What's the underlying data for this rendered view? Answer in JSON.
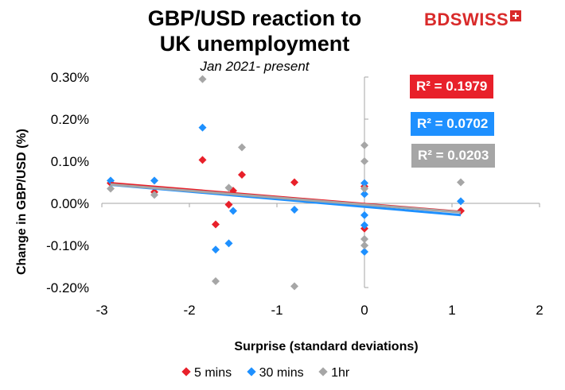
{
  "chart_data": {
    "type": "scatter",
    "title_line1": "GBP/USD reaction to",
    "title_line2": "UK unemployment",
    "subtitle": "Jan 2021- present",
    "xlabel": "Surprise (standard deviations)",
    "ylabel": "Change in GBP/USD  (%)",
    "xlim": [
      -3,
      2
    ],
    "ylim": [
      -0.2,
      0.3
    ],
    "x_ticks": [
      -3,
      -2,
      -1,
      0,
      1,
      2
    ],
    "x_tick_labels": [
      "-3",
      "-2",
      "-1",
      "0",
      "1",
      "2"
    ],
    "y_ticks": [
      -0.2,
      -0.1,
      0.0,
      0.1,
      0.2,
      0.3
    ],
    "y_tick_labels": [
      "-0.20%",
      "-0.10%",
      "0.00%",
      "0.10%",
      "0.20%",
      "0.30%"
    ],
    "grid": false,
    "legend_position": "bottom",
    "series": [
      {
        "name": "5 mins",
        "color": "#e8202a",
        "r2_label": "R² = 0.1979",
        "trend": {
          "slope": -0.017,
          "intercept": -0.0015
        },
        "points": [
          {
            "x": -2.9,
            "y": 0.048
          },
          {
            "x": -2.4,
            "y": 0.027
          },
          {
            "x": -1.85,
            "y": 0.103
          },
          {
            "x": -1.7,
            "y": -0.05
          },
          {
            "x": -1.55,
            "y": -0.003
          },
          {
            "x": -1.5,
            "y": 0.03
          },
          {
            "x": -1.4,
            "y": 0.068
          },
          {
            "x": -0.8,
            "y": 0.05
          },
          {
            "x": 0.0,
            "y": 0.04
          },
          {
            "x": 0.0,
            "y": -0.06
          },
          {
            "x": 1.1,
            "y": -0.018
          }
        ]
      },
      {
        "name": "30 mins",
        "color": "#1e90ff",
        "r2_label": "R² = 0.0702",
        "trend": {
          "slope": -0.018,
          "intercept": -0.008
        },
        "points": [
          {
            "x": -2.9,
            "y": 0.054
          },
          {
            "x": -2.4,
            "y": 0.054
          },
          {
            "x": -1.85,
            "y": 0.18
          },
          {
            "x": -1.7,
            "y": -0.11
          },
          {
            "x": -1.55,
            "y": -0.095
          },
          {
            "x": -1.5,
            "y": -0.018
          },
          {
            "x": -0.8,
            "y": -0.015
          },
          {
            "x": 0.0,
            "y": 0.048
          },
          {
            "x": 0.0,
            "y": 0.022
          },
          {
            "x": 0.0,
            "y": -0.028
          },
          {
            "x": 0.0,
            "y": -0.052
          },
          {
            "x": 0.0,
            "y": -0.115
          },
          {
            "x": 1.1,
            "y": 0.005
          }
        ]
      },
      {
        "name": "1hr",
        "color": "#a6a6a6",
        "r2_label": "R² = 0.0203",
        "trend": {
          "slope": -0.0165,
          "intercept": -0.003
        },
        "points": [
          {
            "x": -2.9,
            "y": 0.035
          },
          {
            "x": -2.4,
            "y": 0.02
          },
          {
            "x": -1.85,
            "y": 0.295
          },
          {
            "x": -1.7,
            "y": -0.185
          },
          {
            "x": -1.55,
            "y": 0.037
          },
          {
            "x": -1.4,
            "y": 0.133
          },
          {
            "x": -0.8,
            "y": -0.197
          },
          {
            "x": 0.0,
            "y": 0.138
          },
          {
            "x": 0.0,
            "y": 0.1
          },
          {
            "x": 0.0,
            "y": 0.035
          },
          {
            "x": 0.0,
            "y": -0.085
          },
          {
            "x": 0.0,
            "y": -0.1
          },
          {
            "x": 1.1,
            "y": 0.05
          }
        ]
      }
    ]
  },
  "brand": {
    "text": "BDSWISS"
  }
}
